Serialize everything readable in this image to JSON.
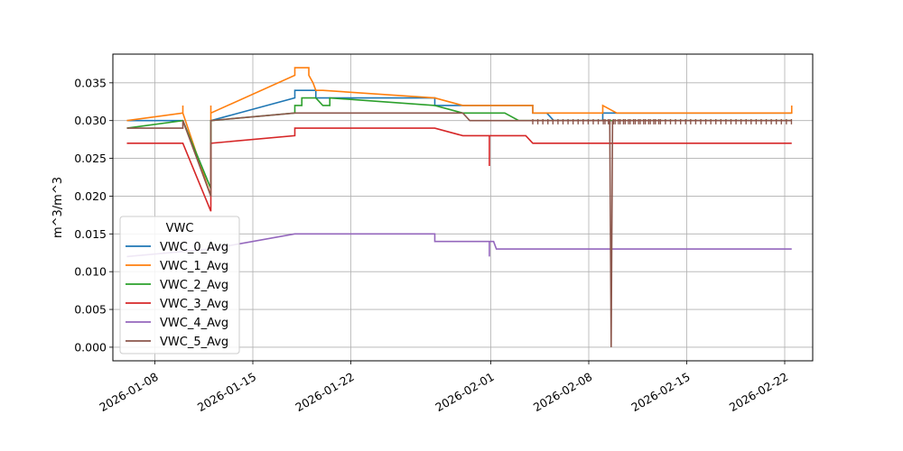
{
  "chart_data": {
    "type": "line",
    "title": "",
    "xlabel": "",
    "ylabel": "m^3/m^3",
    "x_type": "date",
    "xlim": [
      "2026-01-05",
      "2026-02-24"
    ],
    "ylim": [
      -0.0018,
      0.0388
    ],
    "x_ticks": [
      "2026-01-08",
      "2026-01-15",
      "2026-01-22",
      "2026-02-01",
      "2026-02-08",
      "2026-02-15",
      "2026-02-22"
    ],
    "y_ticks": [
      0.0,
      0.005,
      0.01,
      0.015,
      0.02,
      0.025,
      0.03,
      0.035
    ],
    "y_tick_labels": [
      "0.000",
      "0.005",
      "0.010",
      "0.015",
      "0.020",
      "0.025",
      "0.030",
      "0.035"
    ],
    "grid": true,
    "legend": {
      "title": "VWC",
      "placement": "lower-left"
    },
    "series": [
      {
        "name": "VWC_0_Avg",
        "color": "#1f77b4",
        "points": [
          [
            "2026-01-06",
            0.03
          ],
          [
            "2026-01-10",
            0.03
          ],
          [
            "2026-01-12",
            0.021
          ],
          [
            "2026-01-12",
            0.03
          ],
          [
            "2026-01-18",
            0.033
          ],
          [
            "2026-01-18",
            0.034
          ],
          [
            "2026-01-19.5",
            0.034
          ],
          [
            "2026-01-19.5",
            0.033
          ],
          [
            "2026-01-28",
            0.033
          ],
          [
            "2026-01-28",
            0.032
          ],
          [
            "2026-02-04",
            0.032
          ],
          [
            "2026-02-04",
            0.031
          ],
          [
            "2026-02-05",
            0.031
          ],
          [
            "2026-02-05.5",
            0.03
          ],
          [
            "2026-02-09",
            0.03
          ],
          [
            "2026-02-09",
            0.031
          ],
          [
            "2026-02-22.5",
            0.031
          ]
        ]
      },
      {
        "name": "VWC_1_Avg",
        "color": "#ff7f0e",
        "points": [
          [
            "2026-01-06",
            0.03
          ],
          [
            "2026-01-10",
            0.031
          ],
          [
            "2026-01-10",
            0.032
          ],
          [
            "2026-01-10",
            0.031
          ],
          [
            "2026-01-12",
            0.02
          ],
          [
            "2026-01-12",
            0.032
          ],
          [
            "2026-01-12",
            0.031
          ],
          [
            "2026-01-18",
            0.036
          ],
          [
            "2026-01-18",
            0.037
          ],
          [
            "2026-01-19",
            0.037
          ],
          [
            "2026-01-19",
            0.036
          ],
          [
            "2026-01-19.3",
            0.035
          ],
          [
            "2026-01-19.5",
            0.034
          ],
          [
            "2026-01-20",
            0.034
          ],
          [
            "2026-01-28",
            0.033
          ],
          [
            "2026-01-30",
            0.032
          ],
          [
            "2026-02-04",
            0.032
          ],
          [
            "2026-02-04",
            0.031
          ],
          [
            "2026-02-09",
            0.031
          ],
          [
            "2026-02-09",
            0.032
          ],
          [
            "2026-02-10",
            0.031
          ],
          [
            "2026-02-22.5",
            0.031
          ],
          [
            "2026-02-22.5",
            0.032
          ]
        ]
      },
      {
        "name": "VWC_2_Avg",
        "color": "#2ca02c",
        "points": [
          [
            "2026-01-06",
            0.029
          ],
          [
            "2026-01-10",
            0.03
          ],
          [
            "2026-01-12",
            0.021
          ],
          [
            "2026-01-12",
            0.03
          ],
          [
            "2026-01-18",
            0.031
          ],
          [
            "2026-01-18",
            0.032
          ],
          [
            "2026-01-18.5",
            0.032
          ],
          [
            "2026-01-18.5",
            0.033
          ],
          [
            "2026-01-19.5",
            0.033
          ],
          [
            "2026-01-20",
            0.032
          ],
          [
            "2026-01-20.5",
            0.032
          ],
          [
            "2026-01-20.5",
            0.033
          ],
          [
            "2026-01-28",
            0.032
          ],
          [
            "2026-01-30",
            0.031
          ],
          [
            "2026-02-02",
            0.031
          ],
          [
            "2026-02-03",
            0.03
          ],
          [
            "2026-02-09",
            0.03
          ],
          [
            "2026-02-22.5",
            0.03
          ]
        ]
      },
      {
        "name": "VWC_3_Avg",
        "color": "#d62728",
        "points": [
          [
            "2026-01-06",
            0.027
          ],
          [
            "2026-01-10",
            0.027
          ],
          [
            "2026-01-12",
            0.018
          ],
          [
            "2026-01-12",
            0.027
          ],
          [
            "2026-01-18",
            0.028
          ],
          [
            "2026-01-18",
            0.029
          ],
          [
            "2026-01-28",
            0.029
          ],
          [
            "2026-01-30",
            0.028
          ],
          [
            "2026-01-31.9",
            0.028
          ],
          [
            "2026-01-31.9",
            0.024
          ],
          [
            "2026-01-31.9",
            0.028
          ],
          [
            "2026-02-03.5",
            0.028
          ],
          [
            "2026-02-04",
            0.027
          ],
          [
            "2026-02-22.5",
            0.027
          ]
        ]
      },
      {
        "name": "VWC_4_Avg",
        "color": "#9467bd",
        "points": [
          [
            "2026-01-06",
            0.012
          ],
          [
            "2026-01-12",
            0.013
          ],
          [
            "2026-01-18",
            0.015
          ],
          [
            "2026-01-28",
            0.015
          ],
          [
            "2026-01-28",
            0.014
          ],
          [
            "2026-01-31.9",
            0.014
          ],
          [
            "2026-01-31.9",
            0.012
          ],
          [
            "2026-01-31.9",
            0.014
          ],
          [
            "2026-02-01.2",
            0.014
          ],
          [
            "2026-02-01.4",
            0.013
          ],
          [
            "2026-02-22.5",
            0.013
          ]
        ]
      },
      {
        "name": "VWC_5_Avg",
        "color": "#8c564b",
        "points": [
          [
            "2026-01-06",
            0.029
          ],
          [
            "2026-01-10",
            0.029
          ],
          [
            "2026-01-10",
            0.03
          ],
          [
            "2026-01-12",
            0.02
          ],
          [
            "2026-01-12",
            0.03
          ],
          [
            "2026-01-18",
            0.031
          ],
          [
            "2026-01-30",
            0.031
          ],
          [
            "2026-01-30.5",
            0.03
          ],
          [
            "2026-02-09.5",
            0.03
          ],
          [
            "2026-02-09.6",
            0.0
          ],
          [
            "2026-02-09.7",
            0.03
          ],
          [
            "2026-02-22.5",
            0.03
          ]
        ]
      }
    ]
  }
}
